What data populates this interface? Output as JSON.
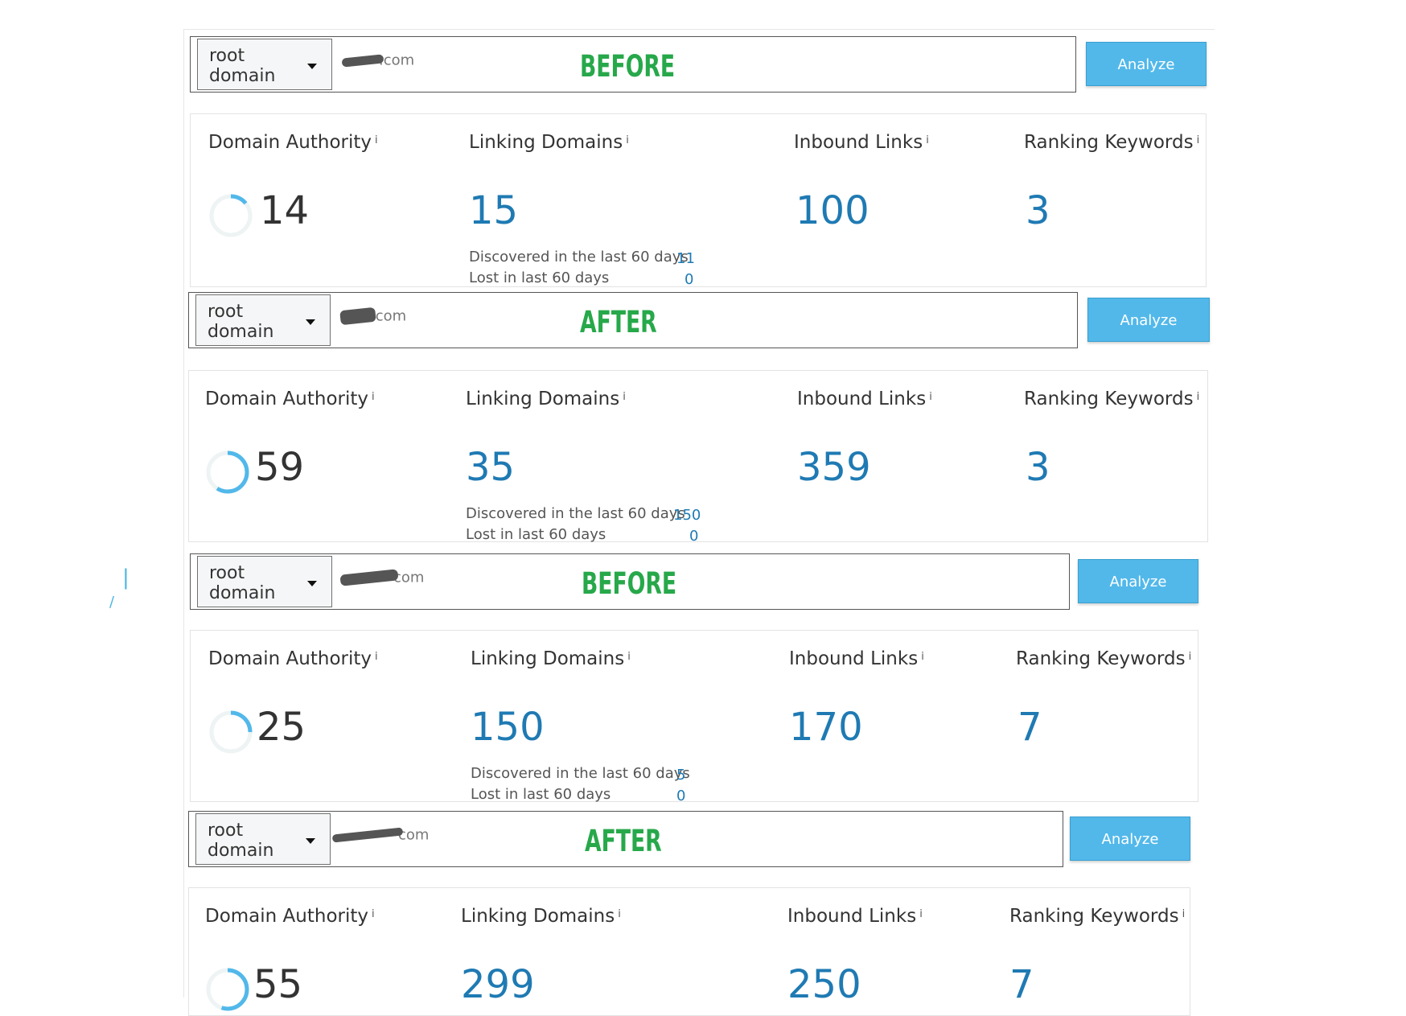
{
  "accent_color": "#52b8ea",
  "value_color": "#1f7ab3",
  "state_color": "#27a84a",
  "sections": [
    {
      "state": "BEFORE",
      "search": {
        "scope_label": "root\ndomain",
        "domain_visible": ".com",
        "analyze_label": "Analyze"
      },
      "metrics": {
        "domain_authority": {
          "label": "Domain Authority",
          "value": "14",
          "score": 14
        },
        "linking_domains": {
          "label": "Linking Domains",
          "value": "15",
          "discovered_label": "Discovered in the last 60 days",
          "discovered": "11",
          "lost_label": "Lost in last 60 days",
          "lost": "0"
        },
        "inbound_links": {
          "label": "Inbound Links",
          "value": "100"
        },
        "ranking_keywords": {
          "label": "Ranking Keywords",
          "value": "3"
        }
      }
    },
    {
      "state": "AFTER",
      "search": {
        "scope_label": "root\ndomain",
        "domain_visible": ".com",
        "analyze_label": "Analyze"
      },
      "metrics": {
        "domain_authority": {
          "label": "Domain Authority",
          "value": "59",
          "score": 59
        },
        "linking_domains": {
          "label": "Linking Domains",
          "value": "35",
          "discovered_label": "Discovered in the last 60 days",
          "discovered": "150",
          "lost_label": "Lost in last 60 days",
          "lost": "0"
        },
        "inbound_links": {
          "label": "Inbound Links",
          "value": "359"
        },
        "ranking_keywords": {
          "label": "Ranking Keywords",
          "value": "3"
        }
      }
    },
    {
      "state": "BEFORE",
      "search": {
        "scope_label": "root\ndomain",
        "domain_visible": "com",
        "analyze_label": "Analyze"
      },
      "metrics": {
        "domain_authority": {
          "label": "Domain Authority",
          "value": "25",
          "score": 25
        },
        "linking_domains": {
          "label": "Linking Domains",
          "value": "150",
          "discovered_label": "Discovered in the last 60 days",
          "discovered": "5",
          "lost_label": "Lost in last 60 days",
          "lost": "0"
        },
        "inbound_links": {
          "label": "Inbound Links",
          "value": "170"
        },
        "ranking_keywords": {
          "label": "Ranking Keywords",
          "value": "7"
        }
      }
    },
    {
      "state": "AFTER",
      "search": {
        "scope_label": "root\ndomain",
        "domain_visible": "com",
        "analyze_label": "Analyze"
      },
      "metrics": {
        "domain_authority": {
          "label": "Domain Authority",
          "value": "55",
          "score": 55
        },
        "linking_domains": {
          "label": "Linking Domains",
          "value": "299"
        },
        "inbound_links": {
          "label": "Inbound Links",
          "value": "250"
        },
        "ranking_keywords": {
          "label": "Ranking Keywords",
          "value": "7"
        }
      }
    }
  ]
}
